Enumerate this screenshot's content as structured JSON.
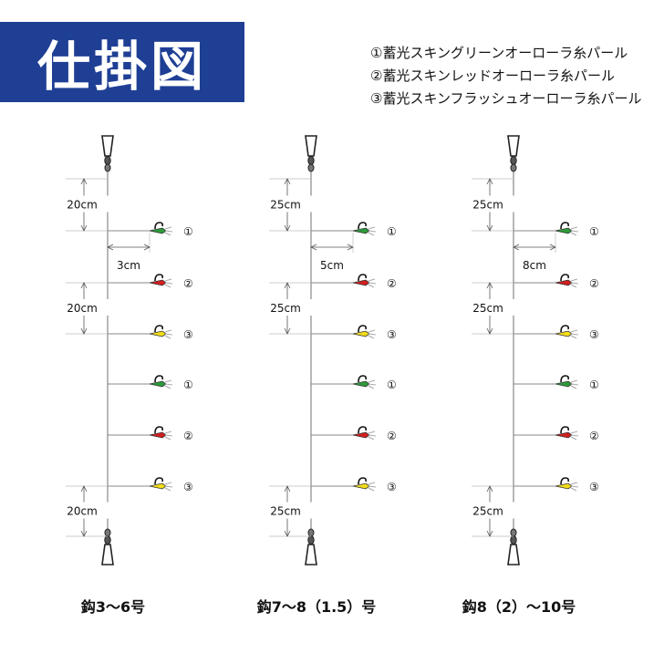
{
  "title": "仕掛図",
  "legend": [
    "①蓄光スキングリーンオーローラ糸パール",
    "②蓄光スキンレッドオーローラ糸パール",
    "③蓄光スキンフラッシュオーローラ糸パール"
  ],
  "colors": {
    "title_bg": "#1f3f95",
    "green": "#2e9a3a",
    "red": "#d21f1f",
    "yellow": "#f2dc1a"
  },
  "rigs": [
    {
      "caption": "鈎3〜6号",
      "top_gap": "20cm",
      "branch_length": "3cm",
      "mid_gap": "20cm",
      "bottom_gap": "20cm"
    },
    {
      "caption": "鈎7〜8（1.5）号",
      "top_gap": "25cm",
      "branch_length": "5cm",
      "mid_gap": "25cm",
      "bottom_gap": "25cm"
    },
    {
      "caption": "鈎8（2）〜10号",
      "top_gap": "25cm",
      "branch_length": "8cm",
      "mid_gap": "25cm",
      "bottom_gap": "25cm"
    }
  ],
  "hooks": [
    {
      "num": "①",
      "color": "green"
    },
    {
      "num": "②",
      "color": "red"
    },
    {
      "num": "③",
      "color": "yellow"
    },
    {
      "num": "①",
      "color": "green"
    },
    {
      "num": "②",
      "color": "red"
    },
    {
      "num": "③",
      "color": "yellow"
    }
  ]
}
